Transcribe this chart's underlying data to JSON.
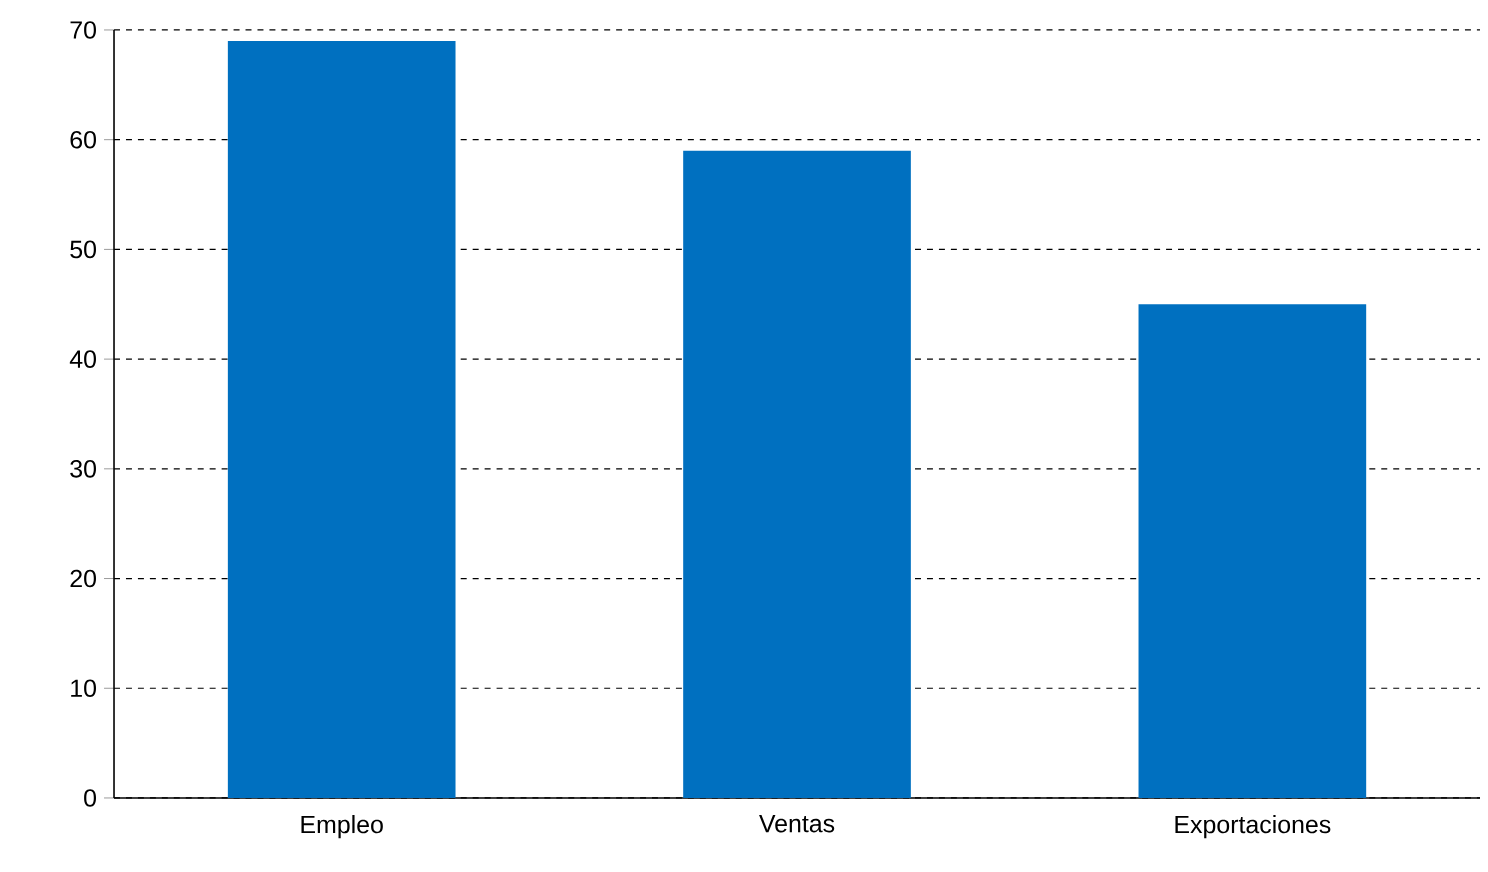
{
  "chart_data": {
    "type": "bar",
    "categories": [
      "Empleo",
      "Ventas",
      "Exportaciones"
    ],
    "values": [
      69,
      59,
      45
    ],
    "color": "#0070c0",
    "ylim": [
      0,
      70
    ],
    "yticks": [
      0,
      10,
      20,
      30,
      40,
      50,
      60,
      70
    ],
    "grid": "y",
    "line_style": "dashed"
  }
}
